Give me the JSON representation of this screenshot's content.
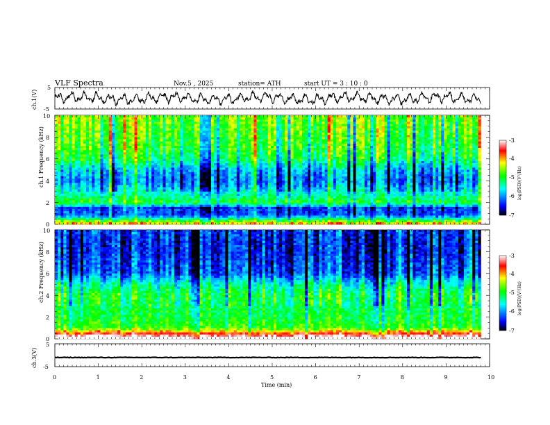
{
  "header": {
    "title": "VLF  Spectra",
    "date": "Nov.5  , 2025",
    "station": "station= ATH",
    "start_ut": "start  UT  =   3  : 10 : 0"
  },
  "chart_data": [
    {
      "type": "line",
      "panel": "ch1-waveform",
      "ylabel": "ch.1(V)",
      "ylim": [
        -5,
        5
      ],
      "yticks": [
        "5",
        "-5"
      ],
      "x_range_min": [
        0,
        9.8
      ],
      "description_values": "noisy waveform oscillating roughly between -3 and +3 V"
    },
    {
      "type": "heatmap",
      "panel": "ch1-spectrogram",
      "ylabel": "ch.1 Frequency (kHz)",
      "ylim": [
        0,
        10
      ],
      "yticks": [
        "0",
        "2",
        "4",
        "6",
        "8",
        "10"
      ],
      "x_range_min": [
        0,
        9.8
      ],
      "colorbar": {
        "label": "log(PSD)(V²/Hz)",
        "range": [
          -7,
          -3
        ],
        "ticks": [
          "-3",
          "-4",
          "-5",
          "-6",
          "-7"
        ]
      },
      "frequency_profile": [
        {
          "f": 0.2,
          "v": -4.4
        },
        {
          "f": 0.8,
          "v": -6.2
        },
        {
          "f": 1.5,
          "v": -6.3
        },
        {
          "f": 2.0,
          "v": -4.9
        },
        {
          "f": 3.0,
          "v": -5.6
        },
        {
          "f": 4.0,
          "v": -6.1
        },
        {
          "f": 5.0,
          "v": -5.8
        },
        {
          "f": 6.0,
          "v": -5.1
        },
        {
          "f": 7.0,
          "v": -4.9
        },
        {
          "f": 8.0,
          "v": -4.8
        },
        {
          "f": 9.0,
          "v": -4.7
        },
        {
          "f": 10.0,
          "v": -4.6
        }
      ]
    },
    {
      "type": "heatmap",
      "panel": "ch2-spectrogram",
      "ylabel": "ch.2 Frequency (kHz)",
      "ylim": [
        0,
        10
      ],
      "yticks": [
        "0",
        "2",
        "4",
        "6",
        "8",
        "10"
      ],
      "x_range_min": [
        0,
        9.8
      ],
      "colorbar": {
        "label": "log(PSD)(V²/Hz)",
        "range": [
          -7,
          -3
        ],
        "ticks": [
          "-3",
          "-4",
          "-5",
          "-6",
          "-7"
        ]
      },
      "frequency_profile": [
        {
          "f": 0.5,
          "v": -3.6
        },
        {
          "f": 1.0,
          "v": -4.8
        },
        {
          "f": 2.0,
          "v": -5.0
        },
        {
          "f": 3.0,
          "v": -5.1
        },
        {
          "f": 4.0,
          "v": -5.0
        },
        {
          "f": 5.0,
          "v": -5.4
        },
        {
          "f": 6.0,
          "v": -6.2
        },
        {
          "f": 7.0,
          "v": -6.3
        },
        {
          "f": 8.0,
          "v": -6.4
        },
        {
          "f": 9.0,
          "v": -6.4
        },
        {
          "f": 10.0,
          "v": -6.3
        }
      ]
    },
    {
      "type": "line",
      "panel": "ch3-waveform",
      "ylabel": "ch.3(V)",
      "ylim": [
        -5,
        5
      ],
      "yticks": [
        "5",
        "-5"
      ],
      "x_range_min": [
        0,
        9.8
      ],
      "constant_value": -1.0
    }
  ],
  "xaxis": {
    "label": "Time  (min)",
    "range": [
      0,
      10
    ],
    "ticks": [
      "0",
      "1",
      "2",
      "3",
      "4",
      "5",
      "6",
      "7",
      "8",
      "9",
      "10"
    ]
  },
  "colors": {
    "low": "#000000",
    "blue": "#0000ff",
    "cyan": "#00ffff",
    "green": "#00ff00",
    "yellow": "#ffff00",
    "red": "#ff0000",
    "high": "#ffffff"
  }
}
